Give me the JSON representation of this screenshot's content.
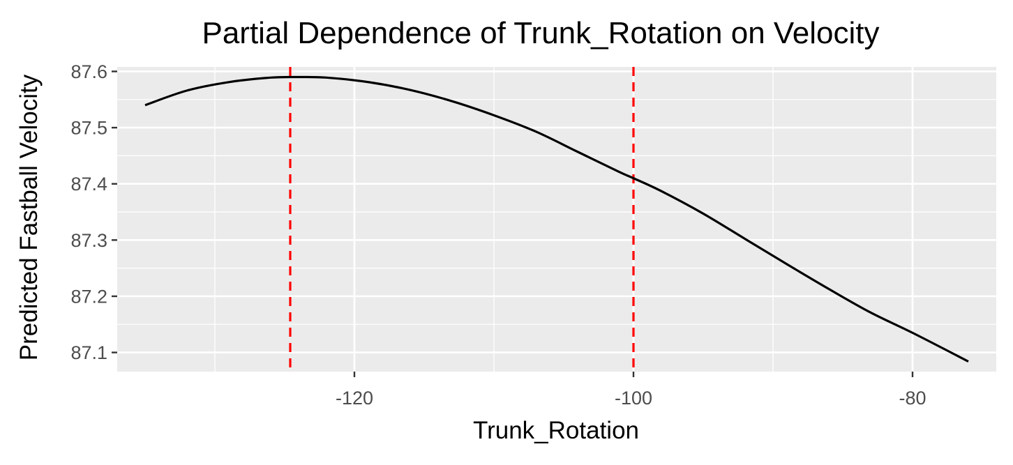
{
  "chart_data": {
    "type": "line",
    "title": "Partial Dependence of Trunk_Rotation on Velocity",
    "xlabel": "Trunk_Rotation",
    "ylabel": "Predicted Fastball Velocity",
    "xlim": [
      -137,
      -74
    ],
    "ylim": [
      87.066,
      87.608
    ],
    "x_ticks": [
      -120,
      -100,
      -80
    ],
    "x_tick_labels": [
      "-120",
      "-100",
      "-80"
    ],
    "y_ticks": [
      87.1,
      87.2,
      87.3,
      87.4,
      87.5,
      87.6
    ],
    "y_tick_labels": [
      "87.1",
      "87.2",
      "87.3",
      "87.4",
      "87.5",
      "87.6"
    ],
    "grid": true,
    "panel_background": "#ebebeb",
    "series": [
      {
        "color": "#000000",
        "x": [
          -135,
          -132,
          -129,
          -126,
          -124,
          -122,
          -119,
          -116,
          -113,
          -110,
          -107,
          -104,
          -101,
          -100,
          -98,
          -95,
          -92,
          -89,
          -86,
          -83,
          -80,
          -76
        ],
        "y": [
          87.54,
          87.566,
          87.581,
          87.589,
          87.59,
          87.589,
          87.581,
          87.567,
          87.547,
          87.522,
          87.493,
          87.457,
          87.421,
          87.41,
          87.387,
          87.347,
          87.302,
          87.257,
          87.213,
          87.171,
          87.135,
          87.084
        ]
      }
    ],
    "vlines": [
      {
        "x": -124.6,
        "color": "#ff0000",
        "style": "dashed"
      },
      {
        "x": -100,
        "color": "#ff0000",
        "style": "dashed"
      }
    ]
  }
}
